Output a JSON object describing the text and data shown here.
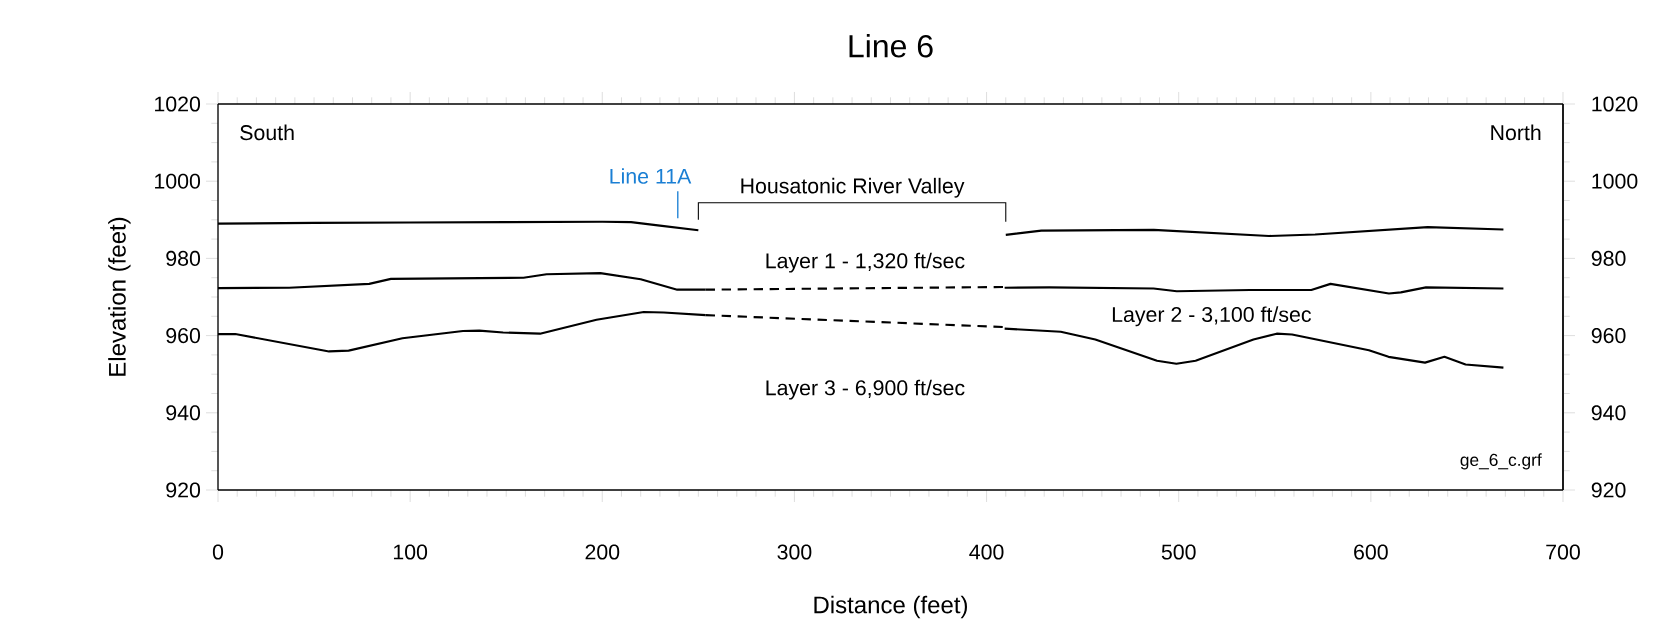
{
  "chart_data": {
    "type": "line",
    "title": "Line 6",
    "xlabel": "Distance (feet)",
    "ylabel": "Elevation (feet)",
    "xlim": [
      0,
      700
    ],
    "xticks": [
      0,
      100,
      200,
      300,
      400,
      500,
      600,
      700
    ],
    "ylim": [
      920,
      1020
    ],
    "yticks": [
      920,
      940,
      960,
      980,
      1000,
      1020
    ],
    "y2lim": [
      920,
      1020
    ],
    "y2ticks": [
      920,
      940,
      960,
      980,
      1000,
      1020
    ],
    "grid": false,
    "legend": false,
    "marker": "none",
    "series": [
      {
        "color": "#000000",
        "line_style": "solid",
        "x": [
          0,
          50,
          100,
          150,
          200,
          215,
          230,
          250
        ],
        "values": [
          989,
          989.2,
          989.3,
          989.4,
          989.5,
          989.4,
          988.5,
          987.3
        ]
      },
      {
        "color": "#000000",
        "line_style": "solid",
        "x": [
          410,
          428.5,
          487,
          547,
          571,
          629.6,
          669
        ],
        "values": [
          986.1,
          987.2,
          987.4,
          985.8,
          986.2,
          988.1,
          987.5
        ]
      },
      {
        "color": "#000000",
        "line_style": "solid",
        "x": [
          0,
          37,
          78.7,
          90,
          159,
          171,
          199,
          220,
          239,
          253.8
        ],
        "values": [
          972.3,
          972.4,
          973.4,
          974.7,
          975,
          975.9,
          976.2,
          974.6,
          971.9,
          971.9
        ]
      },
      {
        "color": "#000000",
        "line_style": "dashed",
        "x": [
          253.8,
          409.8
        ],
        "values": [
          971.9,
          972.6
        ]
      },
      {
        "color": "#000000",
        "line_style": "solid",
        "x": [
          409.4,
          432.6,
          486.9,
          499,
          537,
          569,
          579,
          609.4,
          615.6,
          628.7,
          669
        ],
        "values": [
          972.4,
          972.5,
          972.2,
          971.5,
          971.8,
          971.8,
          973.4,
          970.9,
          971.2,
          972.5,
          972.2
        ]
      },
      {
        "color": "#000000",
        "line_style": "solid",
        "x": [
          0,
          9,
          57.8,
          68,
          96,
          127.5,
          136,
          148.4,
          167.6,
          197,
          221.6,
          232,
          253.8
        ],
        "values": [
          960.4,
          960.4,
          955.9,
          956.1,
          959.3,
          961.2,
          961.3,
          960.8,
          960.5,
          964.1,
          966.1,
          966,
          965.3
        ]
      },
      {
        "color": "#000000",
        "line_style": "dashed",
        "x": [
          253.8,
          409.8
        ],
        "values": [
          965.3,
          962.2
        ]
      },
      {
        "color": "#000000",
        "line_style": "solid",
        "x": [
          409.4,
          438.6,
          456.6,
          488.7,
          498.8,
          508.8,
          538.9,
          551,
          559,
          599,
          609.2,
          628.2,
          638.3,
          649.3,
          669
        ],
        "values": [
          961.8,
          961,
          959,
          953.5,
          952.7,
          953.5,
          959,
          960.5,
          960.3,
          956.2,
          954.5,
          953,
          954.5,
          952.5,
          951.7
        ]
      }
    ],
    "ref_lines": [
      {
        "axis": "x",
        "value": 239.3,
        "label": "Line 11A",
        "color": "#1a7fd4"
      }
    ],
    "annotations": [
      "South",
      "North",
      "Housatonic River Valley",
      "Layer 1 - 1,320 ft/sec",
      "Layer 2 - 3,100 ft/sec",
      "Layer 3 - 6,900 ft/sec",
      "ge_6_c.grf"
    ]
  }
}
